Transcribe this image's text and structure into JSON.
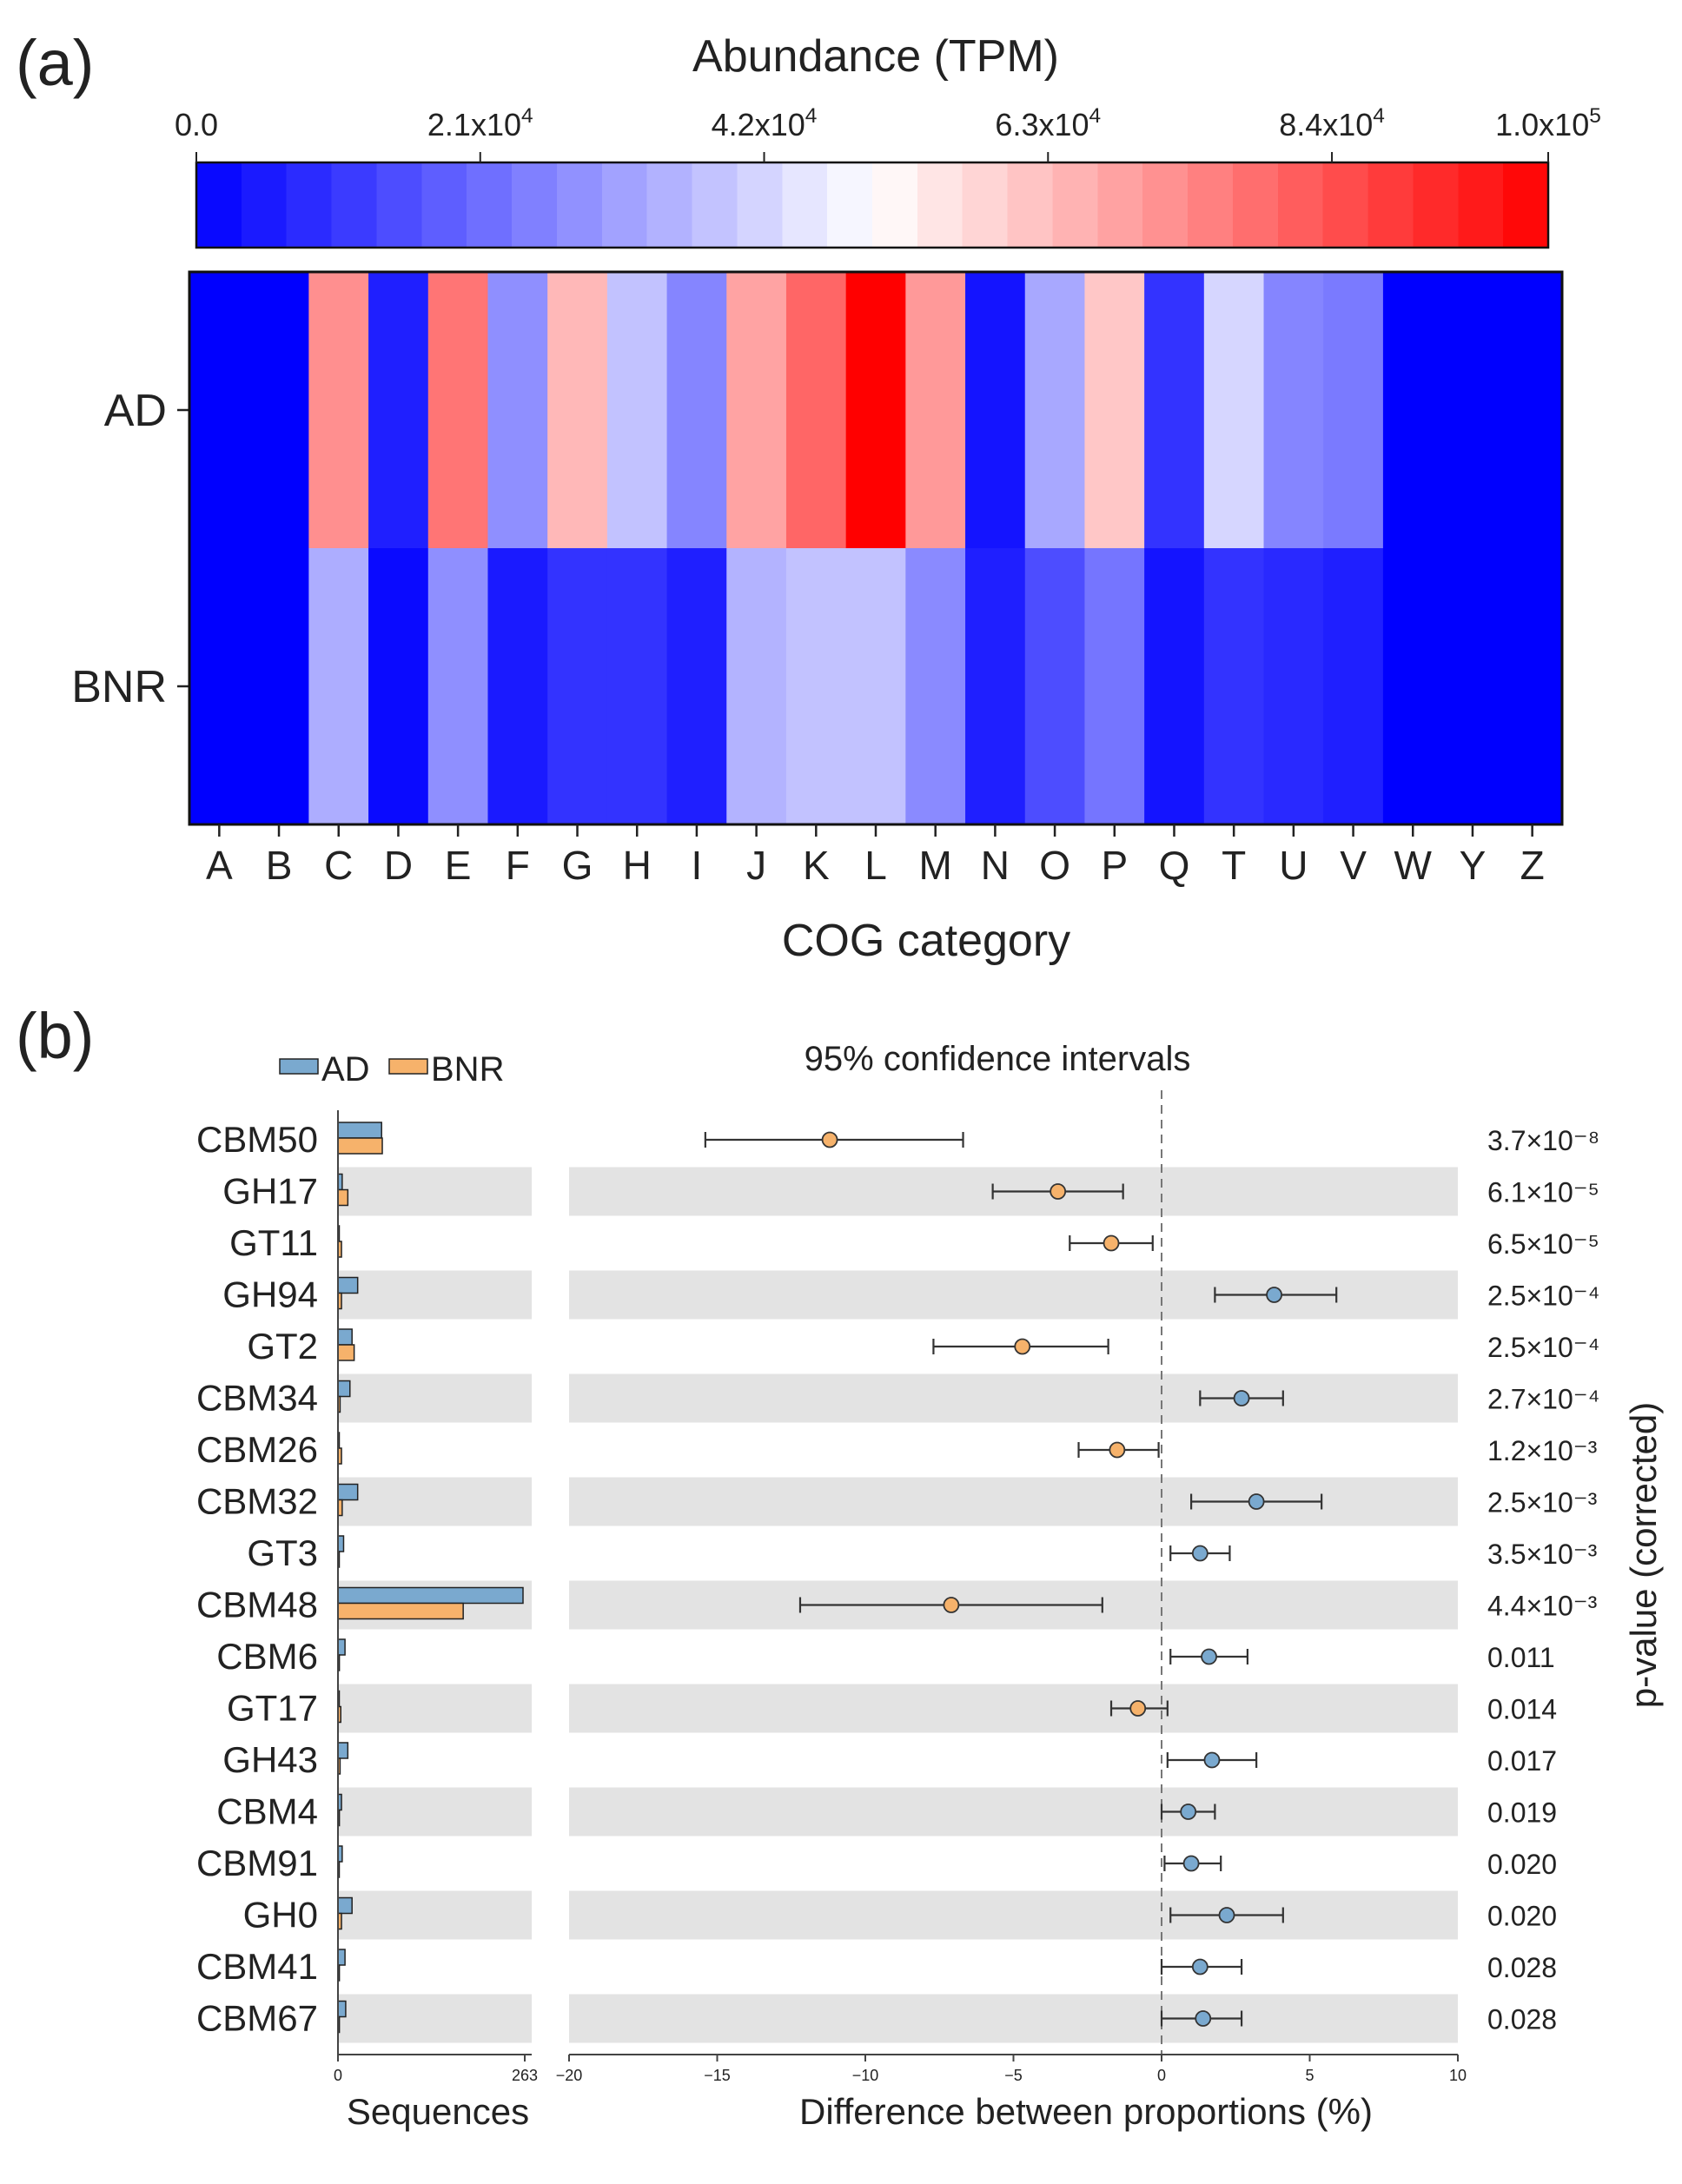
{
  "chart_data": [
    {
      "panel_label": "(a)",
      "type": "heatmap",
      "colorbar": {
        "title": "Abundance (TPM)",
        "ticks": [
          "0.0",
          "2.1x10^4",
          "4.2x10^4",
          "6.3x10^4",
          "8.4x10^4",
          "1.0x10^5"
        ],
        "tick_values": [
          0,
          21000,
          42000,
          63000,
          84000,
          100000
        ],
        "range": [
          0,
          100000
        ],
        "colormap": [
          "#0000ff",
          "#ffffff",
          "#ff0000"
        ]
      },
      "rows": [
        "AD",
        "BNR"
      ],
      "categories": [
        "A",
        "B",
        "C",
        "D",
        "E",
        "F",
        "G",
        "H",
        "I",
        "J",
        "K",
        "L",
        "M",
        "N",
        "O",
        "P",
        "Q",
        "T",
        "U",
        "V",
        "W",
        "Y",
        "Z"
      ],
      "xlabel": "COG category",
      "values": [
        [
          0,
          0,
          72000,
          6000,
          77000,
          28000,
          64000,
          38000,
          26000,
          68000,
          80000,
          100000,
          70000,
          4000,
          33000,
          61000,
          10000,
          42000,
          26000,
          24000,
          0,
          0,
          0
        ],
        [
          0,
          0,
          34000,
          2000,
          28000,
          5000,
          10000,
          10000,
          6000,
          35000,
          38000,
          38000,
          27000,
          6000,
          15000,
          23000,
          4000,
          10000,
          8000,
          6000,
          0,
          0,
          0
        ]
      ]
    },
    {
      "panel_label": "(b)",
      "type": "bar",
      "legend": [
        {
          "name": "AD",
          "color": "#7aa9cf"
        },
        {
          "name": "BNR",
          "color": "#f6b26b"
        }
      ],
      "categories": [
        "CBM50",
        "GH17",
        "GT11",
        "GH94",
        "GT2",
        "CBM34",
        "CBM26",
        "CBM32",
        "GT3",
        "CBM48",
        "CBM6",
        "GT17",
        "GH43",
        "CBM4",
        "CBM91",
        "GH0",
        "CBM41",
        "CBM67"
      ],
      "series": [
        {
          "name": "AD",
          "values": [
            62,
            6,
            1,
            28,
            20,
            17,
            0,
            28,
            8,
            263,
            10,
            1,
            14,
            5,
            6,
            20,
            10,
            11
          ]
        },
        {
          "name": "BNR",
          "values": [
            63,
            14,
            5,
            5,
            23,
            3,
            5,
            6,
            1,
            178,
            2,
            4,
            3,
            2,
            1,
            5,
            2,
            2
          ]
        }
      ],
      "xlabel": "Sequences",
      "xticks": [
        "0",
        "263"
      ],
      "xlim": [
        0,
        263
      ]
    },
    {
      "panel_label": "(b)",
      "type": "scatter",
      "title": "95% confidence intervals",
      "xlabel": "Difference between proportions (%)",
      "xlim": [
        -20,
        10
      ],
      "xticks": [
        "−20",
        "−15",
        "−10",
        "−5",
        "0",
        "5",
        "10"
      ],
      "xtick_values": [
        -20,
        -15,
        -10,
        -5,
        0,
        5,
        10
      ],
      "reference_line": 0,
      "categories": [
        "CBM50",
        "GH17",
        "GT11",
        "GH94",
        "GT2",
        "CBM34",
        "CBM26",
        "CBM32",
        "GT3",
        "CBM48",
        "CBM6",
        "GT17",
        "GH43",
        "CBM4",
        "CBM91",
        "GH0",
        "CBM41",
        "CBM67"
      ],
      "points": [
        {
          "diff": -11.2,
          "lo": -15.4,
          "hi": -6.7,
          "group": "BNR"
        },
        {
          "diff": -3.5,
          "lo": -5.7,
          "hi": -1.3,
          "group": "BNR"
        },
        {
          "diff": -1.7,
          "lo": -3.1,
          "hi": -0.3,
          "group": "BNR"
        },
        {
          "diff": 3.8,
          "lo": 1.8,
          "hi": 5.9,
          "group": "AD"
        },
        {
          "diff": -4.7,
          "lo": -7.7,
          "hi": -1.8,
          "group": "BNR"
        },
        {
          "diff": 2.7,
          "lo": 1.3,
          "hi": 4.1,
          "group": "AD"
        },
        {
          "diff": -1.5,
          "lo": -2.8,
          "hi": -0.1,
          "group": "BNR"
        },
        {
          "diff": 3.2,
          "lo": 1.0,
          "hi": 5.4,
          "group": "AD"
        },
        {
          "diff": 1.3,
          "lo": 0.3,
          "hi": 2.3,
          "group": "AD"
        },
        {
          "diff": -7.1,
          "lo": -12.2,
          "hi": -2.0,
          "group": "BNR"
        },
        {
          "diff": 1.6,
          "lo": 0.3,
          "hi": 2.9,
          "group": "AD"
        },
        {
          "diff": -0.8,
          "lo": -1.7,
          "hi": 0.2,
          "group": "BNR"
        },
        {
          "diff": 1.7,
          "lo": 0.2,
          "hi": 3.2,
          "group": "AD"
        },
        {
          "diff": 0.9,
          "lo": 0.0,
          "hi": 1.8,
          "group": "AD"
        },
        {
          "diff": 1.0,
          "lo": 0.1,
          "hi": 2.0,
          "group": "AD"
        },
        {
          "diff": 2.2,
          "lo": 0.3,
          "hi": 4.1,
          "group": "AD"
        },
        {
          "diff": 1.3,
          "lo": 0.0,
          "hi": 2.7,
          "group": "AD"
        },
        {
          "diff": 1.4,
          "lo": 0.0,
          "hi": 2.7,
          "group": "AD"
        }
      ],
      "pvalue_label": "p-value (corrected)",
      "pvalues": [
        "3.7×10⁻⁸",
        "6.1×10⁻⁵",
        "6.5×10⁻⁵",
        "2.5×10⁻⁴",
        "2.5×10⁻⁴",
        "2.7×10⁻⁴",
        "1.2×10⁻³",
        "2.5×10⁻³",
        "3.5×10⁻³",
        "4.4×10⁻³",
        "0.011",
        "0.014",
        "0.017",
        "0.019",
        "0.020",
        "0.020",
        "0.028",
        "0.028"
      ]
    }
  ]
}
